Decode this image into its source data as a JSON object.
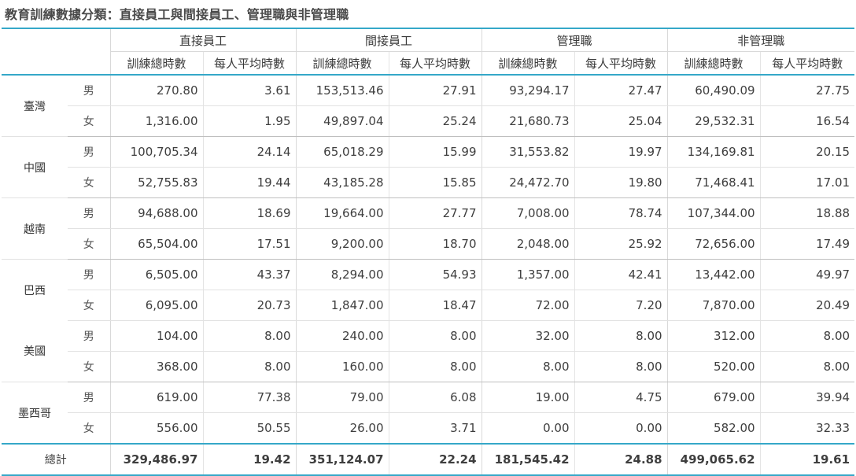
{
  "title": "教育訓練數據分類：直接員工與間接員工、管理職與非管理職",
  "groups": [
    "直接員工",
    "間接員工",
    "管理職",
    "非管理職"
  ],
  "sub_headers": [
    "訓練總時數",
    "每人平均時數"
  ],
  "rows": [
    {
      "country": "臺灣",
      "gender": "男",
      "values": [
        "270.80",
        "3.61",
        "153,513.46",
        "27.91",
        "93,294.17",
        "27.47",
        "60,490.09",
        "27.75"
      ]
    },
    {
      "country": "",
      "gender": "女",
      "values": [
        "1,316.00",
        "1.95",
        "49,897.04",
        "25.24",
        "21,680.73",
        "25.04",
        "29,532.31",
        "16.54"
      ]
    },
    {
      "country": "中國",
      "gender": "男",
      "values": [
        "100,705.34",
        "24.14",
        "65,018.29",
        "15.99",
        "31,553.82",
        "19.97",
        "134,169.81",
        "20.15"
      ]
    },
    {
      "country": "",
      "gender": "女",
      "values": [
        "52,755.83",
        "19.44",
        "43,185.28",
        "15.85",
        "24,472.70",
        "19.80",
        "71,468.41",
        "17.01"
      ]
    },
    {
      "country": "越南",
      "gender": "男",
      "values": [
        "94,688.00",
        "18.69",
        "19,664.00",
        "27.77",
        "7,008.00",
        "78.74",
        "107,344.00",
        "18.88"
      ]
    },
    {
      "country": "",
      "gender": "女",
      "values": [
        "65,504.00",
        "17.51",
        "9,200.00",
        "18.70",
        "2,048.00",
        "25.92",
        "72,656.00",
        "17.49"
      ]
    },
    {
      "country": "巴西",
      "gender": "男",
      "values": [
        "6,505.00",
        "43.37",
        "8,294.00",
        "54.93",
        "1,357.00",
        "42.41",
        "13,442.00",
        "49.97"
      ]
    },
    {
      "country": "",
      "gender": "女",
      "values": [
        "6,095.00",
        "20.73",
        "1,847.00",
        "18.47",
        "72.00",
        "7.20",
        "7,870.00",
        "20.49"
      ]
    },
    {
      "country": "美國",
      "gender": "男",
      "values": [
        "104.00",
        "8.00",
        "240.00",
        "8.00",
        "32.00",
        "8.00",
        "312.00",
        "8.00"
      ]
    },
    {
      "country": "",
      "gender": "女",
      "values": [
        "368.00",
        "8.00",
        "160.00",
        "8.00",
        "8.00",
        "8.00",
        "520.00",
        "8.00"
      ]
    },
    {
      "country": "墨西哥",
      "gender": "男",
      "values": [
        "619.00",
        "77.38",
        "79.00",
        "6.08",
        "19.00",
        "4.75",
        "679.00",
        "39.94"
      ]
    },
    {
      "country": "",
      "gender": "女",
      "values": [
        "556.00",
        "50.55",
        "26.00",
        "3.71",
        "0.00",
        "0.00",
        "582.00",
        "32.33"
      ]
    }
  ],
  "total": {
    "label": "總計",
    "values": [
      "329,486.97",
      "19.42",
      "351,124.07",
      "22.24",
      "181,545.42",
      "24.88",
      "499,065.62",
      "19.61"
    ]
  },
  "colors": {
    "accent_line": "#35a8c8",
    "grid": "#e2e2e2",
    "text": "#3a3a3a"
  }
}
